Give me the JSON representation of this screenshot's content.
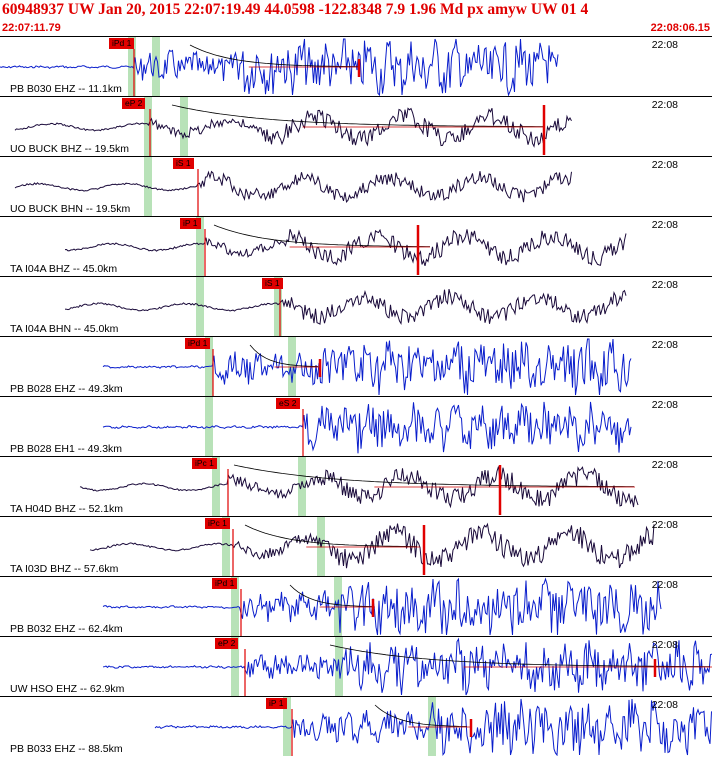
{
  "header": {
    "title": "60948937 UW Jan 20, 2015 22:07:19.49    44.0598 -122.8348  7.9 1.96 Md px amyw UW 01    4",
    "start_time": "22:07:11.79",
    "end_time": "22:08:06.15"
  },
  "colors": {
    "header_red": "#e00000",
    "trace_blue": "#0a1ecc",
    "trace_dark": "#1a0a3a",
    "pick_red": "#e00000",
    "window_green": "#b8e2b8",
    "coda_red": "#cc0000",
    "coda_black": "#000000"
  },
  "traces": [
    {
      "label": "PB B030 EHZ -- 11.1km",
      "time": "22:08",
      "pick": "iPd 1",
      "color": "blue"
    },
    {
      "label": "UO BUCK BHZ -- 19.5km",
      "time": "22:08",
      "pick": "eP 2",
      "color": "dark"
    },
    {
      "label": "UO BUCK BHN -- 19.5km",
      "time": "22:08",
      "pick": "iS 1",
      "color": "dark"
    },
    {
      "label": "TA I04A BHZ -- 45.0km",
      "time": "22:08",
      "pick": "iP 1",
      "color": "dark"
    },
    {
      "label": "TA I04A BHN -- 45.0km",
      "time": "22:08",
      "pick": "iS 1",
      "color": "dark"
    },
    {
      "label": "PB B028 EHZ -- 49.3km",
      "time": "22:08",
      "pick": "iPd 1",
      "color": "blue"
    },
    {
      "label": "PB B028 EH1 -- 49.3km",
      "time": "22:08",
      "pick": "eS 2",
      "color": "blue"
    },
    {
      "label": "TA H04D BHZ -- 52.1km",
      "time": "22:08",
      "pick": "iPc 1",
      "color": "dark"
    },
    {
      "label": "TA I03D BHZ -- 57.6km",
      "time": "22:08",
      "pick": "iPc 1",
      "color": "dark"
    },
    {
      "label": "PB B032 EHZ -- 62.4km",
      "time": "22:08",
      "pick": "iPd 1",
      "color": "blue"
    },
    {
      "label": "UW HSO EHZ -- 62.9km",
      "time": "22:08",
      "pick": "eP 2",
      "color": "blue"
    },
    {
      "label": "PB B033 EHZ -- 88.5km",
      "time": "22:08",
      "pick": "iP 1",
      "color": "blue"
    }
  ]
}
